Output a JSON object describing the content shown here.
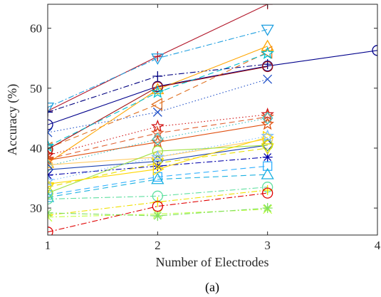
{
  "chart_data": {
    "type": "line",
    "title": "",
    "xlabel": "Number of Electrodes",
    "ylabel": "Accuracy (%)",
    "caption": "(a)",
    "xlim": [
      1,
      4
    ],
    "ylim": [
      25.5,
      64
    ],
    "xticks": [
      "1",
      "2",
      "3",
      "4"
    ],
    "yticks": [
      "30",
      "40",
      "50",
      "60"
    ],
    "grid": false,
    "legend": "none",
    "series": [
      {
        "color": "#b2182b",
        "dash": "solid",
        "marker": "plus",
        "x": [
          1,
          2,
          3
        ],
        "values": [
          46.2,
          55.3,
          64.0
        ]
      },
      {
        "color": "#1f9fe0",
        "dash": "dashdot",
        "marker": "tri-down",
        "x": [
          1,
          2,
          3
        ],
        "values": [
          46.8,
          55.0,
          59.8
        ]
      },
      {
        "color": "#00008b",
        "dash": "solid",
        "marker": "circle",
        "x": [
          1,
          2,
          3,
          4
        ],
        "values": [
          43.9,
          50.3,
          53.7,
          56.3
        ]
      },
      {
        "color": "#000080",
        "dash": "dashdot",
        "marker": "plus",
        "x": [
          1,
          2,
          3
        ],
        "values": [
          46.0,
          52.0,
          54.0
        ]
      },
      {
        "color": "#2050c8",
        "dash": "dotted",
        "marker": "x",
        "x": [
          1,
          2,
          3
        ],
        "values": [
          42.6,
          46.0,
          51.5
        ]
      },
      {
        "color": "#e07020",
        "dash": "dashed",
        "marker": "tri-left",
        "x": [
          1,
          2,
          3
        ],
        "values": [
          40.0,
          47.3,
          56.0
        ]
      },
      {
        "color": "#ffa500",
        "dash": "solid",
        "marker": "tri-up",
        "x": [
          1,
          2,
          3
        ],
        "values": [
          37.5,
          49.8,
          57.0
        ]
      },
      {
        "color": "#a01010",
        "dash": "solid",
        "marker": "circle",
        "x": [
          1,
          2,
          3
        ],
        "values": [
          39.8,
          50.2,
          53.6
        ]
      },
      {
        "color": "#00c0d0",
        "dash": "dashed",
        "marker": "star",
        "x": [
          1,
          2,
          3
        ],
        "values": [
          40.3,
          49.3,
          55.8
        ]
      },
      {
        "color": "#d01010",
        "dash": "dotted",
        "marker": "star",
        "x": [
          1,
          2,
          3
        ],
        "values": [
          38.8,
          43.6,
          45.6
        ]
      },
      {
        "color": "#e06030",
        "dash": "dashed",
        "marker": "star",
        "x": [
          1,
          2,
          3
        ],
        "values": [
          38.2,
          42.5,
          45.2
        ]
      },
      {
        "color": "#e05010",
        "dash": "solid",
        "marker": "star",
        "x": [
          1,
          2,
          3
        ],
        "values": [
          38.0,
          41.0,
          44.0
        ]
      },
      {
        "color": "#40c0c0",
        "dash": "dotted",
        "marker": "diamond",
        "x": [
          1,
          2,
          3
        ],
        "values": [
          37.0,
          41.5,
          45.0
        ]
      },
      {
        "color": "#ffcc66",
        "dash": "solid",
        "marker": "circle",
        "x": [
          1,
          2,
          3
        ],
        "values": [
          37.2,
          38.5,
          41.5
        ]
      },
      {
        "color": "#1a40b0",
        "dash": "solid",
        "marker": "diamond",
        "x": [
          1,
          2,
          3
        ],
        "values": [
          36.4,
          37.8,
          40.5
        ]
      },
      {
        "color": "#0000aa",
        "dash": "dashdot",
        "marker": "asterisk",
        "x": [
          1,
          2,
          3
        ],
        "values": [
          35.5,
          37.0,
          38.5
        ]
      },
      {
        "color": "#30b0ff",
        "dash": "dashed",
        "marker": "square",
        "x": [
          1,
          2,
          3
        ],
        "values": [
          32.2,
          35.2,
          37.0
        ]
      },
      {
        "color": "#1ab0e0",
        "dash": "dashed",
        "marker": "tri-up",
        "x": [
          1,
          2,
          3
        ],
        "values": [
          31.8,
          34.8,
          35.6
        ]
      },
      {
        "color": "#a0e040",
        "dash": "solid",
        "marker": "circle",
        "x": [
          1,
          2,
          3
        ],
        "values": [
          32.5,
          39.5,
          40.5
        ]
      },
      {
        "color": "#e8e000",
        "dash": "dashed",
        "marker": "tri-down",
        "x": [
          1,
          2,
          3
        ],
        "values": [
          33.5,
          37.5,
          40.0
        ]
      },
      {
        "color": "#ffd700",
        "dash": "solid",
        "marker": "tri-right",
        "x": [
          1,
          2,
          3
        ],
        "values": [
          34.0,
          36.5,
          41.8
        ]
      },
      {
        "color": "#80c0ff",
        "dash": "dotted",
        "marker": "star",
        "x": [
          1,
          2,
          3
        ],
        "values": [
          34.5,
          38.5,
          42.0
        ]
      },
      {
        "color": "#60e0a0",
        "dash": "dashdot",
        "marker": "circle",
        "x": [
          1,
          2,
          3
        ],
        "values": [
          31.5,
          32.0,
          33.5
        ]
      },
      {
        "color": "#f0e000",
        "dash": "dashdot",
        "marker": "plus",
        "x": [
          1,
          2,
          3
        ],
        "values": [
          28.8,
          31.0,
          33.0
        ]
      },
      {
        "color": "#c0ff40",
        "dash": "dashdot",
        "marker": "x",
        "x": [
          1,
          2,
          3
        ],
        "values": [
          28.5,
          29.0,
          29.8
        ]
      },
      {
        "color": "#80e060",
        "dash": "dashdot",
        "marker": "asterisk",
        "x": [
          1,
          2,
          3
        ],
        "values": [
          29.2,
          28.7,
          30.0
        ]
      },
      {
        "color": "#e00000",
        "dash": "dashdot",
        "marker": "circle",
        "x": [
          1,
          2,
          3
        ],
        "values": [
          26.0,
          30.3,
          32.5
        ]
      }
    ]
  }
}
